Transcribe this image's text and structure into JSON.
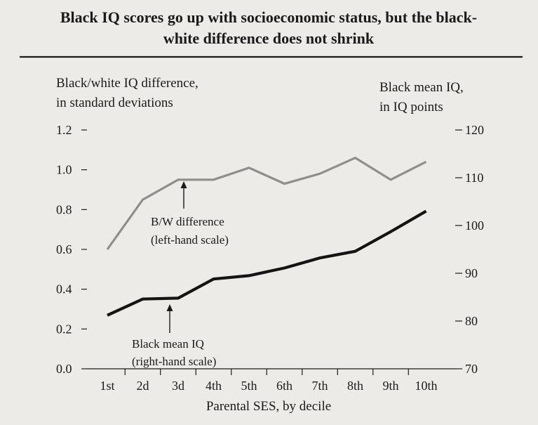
{
  "chart_data": {
    "type": "line",
    "title_lines": [
      "Black IQ scores go up with socioeconomic status, but the black-",
      "white difference does not shrink"
    ],
    "xlabel": "Parental SES, by decile",
    "categories": [
      "1st",
      "2d",
      "3d",
      "4th",
      "5th",
      "6th",
      "7th",
      "8th",
      "9th",
      "10th"
    ],
    "left_axis": {
      "label_lines": [
        "Black/white IQ difference,",
        "in standard deviations"
      ],
      "range": [
        0,
        1.2
      ],
      "ticks": [
        "0.0",
        "0.2",
        "0.4",
        "0.6",
        "0.8",
        "1.0",
        "1.2"
      ],
      "tick_values": [
        0,
        0.2,
        0.4,
        0.6,
        0.8,
        1.0,
        1.2
      ]
    },
    "right_axis": {
      "label_lines": [
        "Black mean IQ,",
        "in IQ points"
      ],
      "range": [
        70,
        120
      ],
      "ticks": [
        "70",
        "80",
        "90",
        "100",
        "110",
        "120"
      ],
      "tick_values": [
        70,
        80,
        90,
        100,
        110,
        120
      ]
    },
    "series": [
      {
        "name": "B/W difference",
        "axis": "left",
        "color": "#8e8e8e",
        "values": [
          0.6,
          0.85,
          0.95,
          0.95,
          1.01,
          0.93,
          0.98,
          1.06,
          0.95,
          1.04
        ],
        "annotation_lines": [
          "B/W difference",
          "(left-hand scale)"
        ]
      },
      {
        "name": "Black mean IQ",
        "axis": "right",
        "color": "#141414",
        "values": [
          81.2,
          84.6,
          84.8,
          88.8,
          89.5,
          91.1,
          93.2,
          94.6,
          98.7,
          103.0
        ],
        "annotation_lines": [
          "Black mean IQ",
          "(right-hand scale)"
        ]
      }
    ]
  }
}
